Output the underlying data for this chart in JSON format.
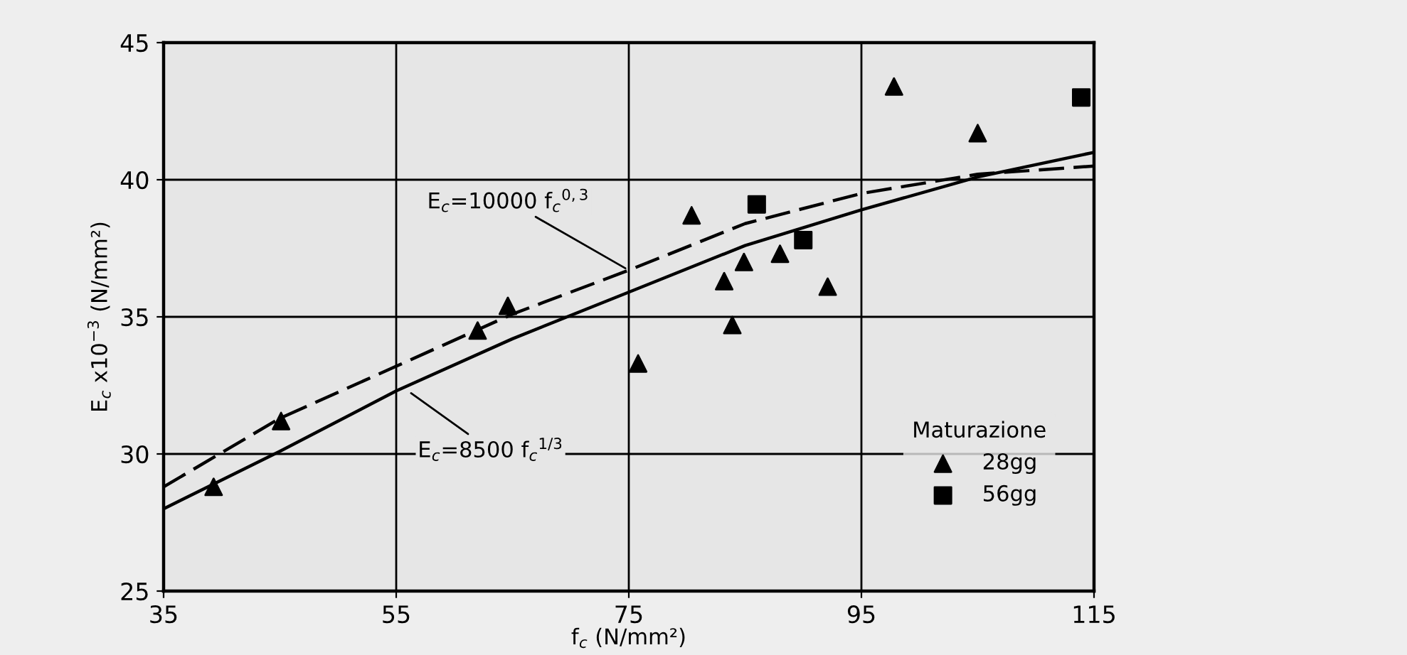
{
  "chart_data": {
    "type": "scatter",
    "xlabel": "f$_{c}$ (N/mm²)",
    "ylabel": "E$_{c}$ x10$^{−3}$ (N/mm²)",
    "legend_title": "Maturazione",
    "legend": "bottom right",
    "grid": true,
    "xlim": [
      35,
      115
    ],
    "xticks": [
      35,
      55,
      75,
      95,
      115
    ],
    "ylim": [
      25,
      45
    ],
    "yticks": [
      25,
      30,
      35,
      40,
      45
    ],
    "series": [
      {
        "name": "28gg",
        "color": "#000000",
        "marker": "triangle",
        "x": [
          39.3,
          45.1,
          62.0,
          64.6,
          75.8,
          80.4,
          83.2,
          83.9,
          84.9,
          88.0,
          92.1,
          97.8,
          105.0
        ],
        "values": [
          28.8,
          31.2,
          34.5,
          35.4,
          33.3,
          38.7,
          36.3,
          34.7,
          37.0,
          37.3,
          36.1,
          43.4,
          41.7
        ]
      },
      {
        "name": "56gg",
        "color": "#000000",
        "marker": "square",
        "x": [
          86.0,
          90.0,
          113.9
        ],
        "values": [
          39.1,
          37.8,
          43.0
        ]
      },
      {
        "type": "line",
        "color": "#000000",
        "line_style": "dashed",
        "marker": "none",
        "x": [
          35,
          45,
          55,
          65,
          75,
          85,
          95,
          105,
          115
        ],
        "values": [
          28.8,
          31.3,
          33.2,
          35.1,
          36.7,
          38.4,
          39.5,
          40.2,
          40.5
        ]
      },
      {
        "type": "line",
        "color": "#000000",
        "line_style": "solid",
        "marker": "none",
        "x": [
          35,
          45,
          55,
          65,
          75,
          85,
          95,
          105,
          115
        ],
        "values": [
          28.0,
          30.1,
          32.3,
          34.2,
          35.9,
          37.6,
          38.9,
          40.1,
          41.0
        ]
      }
    ],
    "annotations": [
      {
        "text": "E$_{c}$=10000 f$_{c}$$^{0,3}$",
        "x": 75,
        "y": 36.7
      },
      {
        "text": "E$_{c}$=8500 f$_{c}$$^{1/3}$",
        "x": 56,
        "y": 32.3
      }
    ]
  }
}
